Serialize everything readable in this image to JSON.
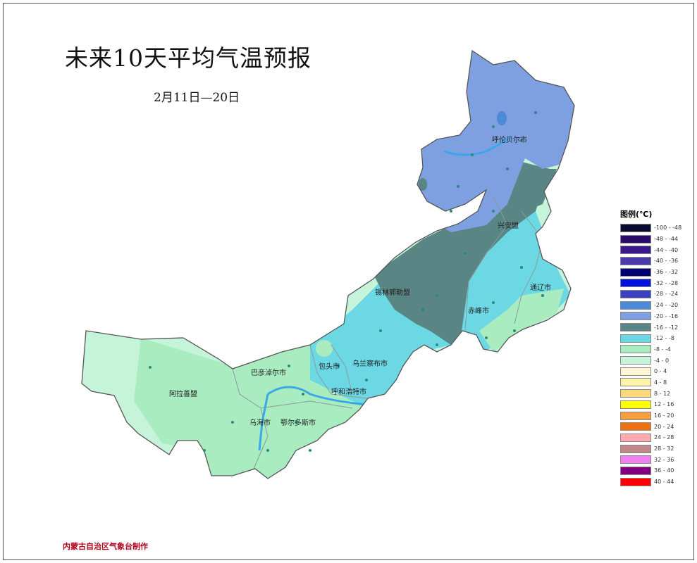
{
  "title": "未来10天平均气温预报",
  "subtitle": "2月11日—20日",
  "footer": "内蒙古自治区气象台制作",
  "regions": [
    {
      "name": "呼伦贝尔市"
    },
    {
      "name": "兴安盟"
    },
    {
      "name": "通辽市"
    },
    {
      "name": "锡林郭勒盟"
    },
    {
      "name": "赤峰市"
    },
    {
      "name": "乌兰察布市"
    },
    {
      "name": "包头市"
    },
    {
      "name": "巴彦淖尔市"
    },
    {
      "name": "呼和浩特市"
    },
    {
      "name": "阿拉善盟"
    },
    {
      "name": "乌海市"
    },
    {
      "name": "鄂尔多斯市"
    }
  ],
  "legend": {
    "title": "图例(℃)",
    "items": [
      {
        "range": "-100 - -48",
        "color": "#0a0a30"
      },
      {
        "range": "-48 - -44",
        "color": "#2a0a6a"
      },
      {
        "range": "-44 - -40",
        "color": "#3a1a8a"
      },
      {
        "range": "-40 - -36",
        "color": "#4a3aaa"
      },
      {
        "range": "-36 - -32",
        "color": "#000070"
      },
      {
        "range": "-32 - -28",
        "color": "#0010e0"
      },
      {
        "range": "-28 - -24",
        "color": "#3a40c0"
      },
      {
        "range": "-24 - -20",
        "color": "#4a8ad8"
      },
      {
        "range": "-20 - -16",
        "color": "#7fa0e0"
      },
      {
        "range": "-16 - -12",
        "color": "#5a8585"
      },
      {
        "range": "-12 - -8",
        "color": "#6cd8e4"
      },
      {
        "range": "-8 - -4",
        "color": "#a8ecc0"
      },
      {
        "range": "-4 - 0",
        "color": "#c6f4da"
      },
      {
        "range": "0 - 4",
        "color": "#fff6d6"
      },
      {
        "range": "4 - 8",
        "color": "#fff4a8"
      },
      {
        "range": "8 - 12",
        "color": "#ffd87a"
      },
      {
        "range": "12 - 16",
        "color": "#ffff00"
      },
      {
        "range": "16 - 20",
        "color": "#f5a040"
      },
      {
        "range": "20 - 24",
        "color": "#f07010"
      },
      {
        "range": "24 - 28",
        "color": "#ffaab0"
      },
      {
        "range": "28 - 32",
        "color": "#c08888"
      },
      {
        "range": "32 - 36",
        "color": "#f080f0"
      },
      {
        "range": "36 - 40",
        "color": "#800080"
      },
      {
        "range": "40 - 44",
        "color": "#ff0000"
      }
    ]
  }
}
